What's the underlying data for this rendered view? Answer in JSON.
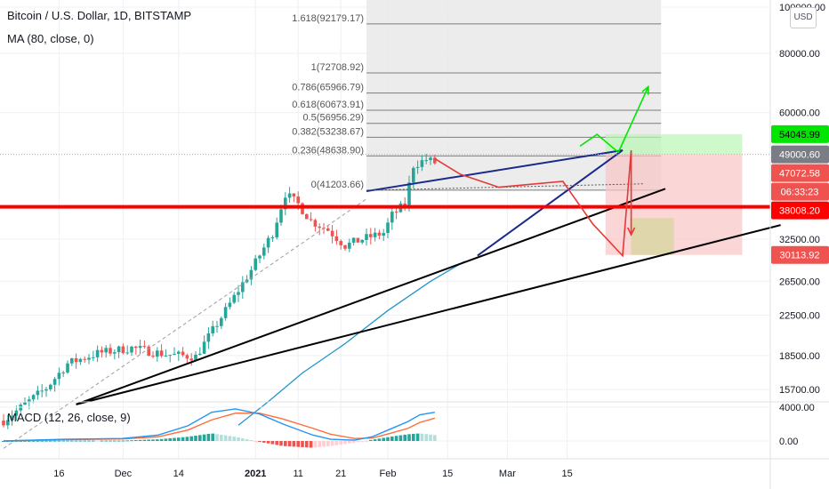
{
  "header": {
    "title": "Bitcoin / U.S. Dollar, 1D, BITSTAMP",
    "ma_label": "MA (80, close, 0)",
    "macd_label": "MACD (12, 26, close, 9)"
  },
  "currency_button": "USD",
  "colors": {
    "up": "#26a69a",
    "down": "#ef5350",
    "ma": "#2196c9",
    "macd": "#2196f3",
    "signal": "#ff6d3a",
    "support": "#ff0000",
    "trend_blue": "#1a2a8a",
    "long_green": "#00e600",
    "short_red": "#e53935"
  },
  "chart_data": {
    "type": "candlestick",
    "symbol": "Bitcoin / U.S. Dollar",
    "interval": "1D",
    "exchange": "BITSTAMP",
    "y_scale": "log",
    "y_ticks": [
      "100000.00",
      "80000.00",
      "60000.00",
      "32500.00",
      "26500.00",
      "22500.00",
      "18500.00",
      "15700.00"
    ],
    "x_ticks": [
      "16",
      "Dec",
      "14",
      "2021",
      "11",
      "21",
      "Feb",
      "15",
      "Mar",
      "15"
    ],
    "price_badges": [
      {
        "label": "54045.99",
        "bg": "#00e600",
        "fg": "#000000"
      },
      {
        "label": "49000.60",
        "bg": "#7a7d86",
        "fg": "#ffffff"
      },
      {
        "label": "47072.58",
        "bg": "#ef5350",
        "fg": "#ffffff"
      },
      {
        "label": "06:33:23",
        "bg": "#ef5350",
        "fg": "#ffffff"
      },
      {
        "label": "38008.20",
        "bg": "#ff0000",
        "fg": "#ffffff"
      },
      {
        "label": "30113.92",
        "bg": "#ef5350",
        "fg": "#ffffff"
      }
    ],
    "fib_levels": [
      {
        "label": "1.618(92179.17)"
      },
      {
        "label": "1(72708.92)"
      },
      {
        "label": "0.786(65966.79)"
      },
      {
        "label": "0.618(60673.91)"
      },
      {
        "label": "0.5(56956.29)"
      },
      {
        "label": "0.382(53238.67)"
      },
      {
        "label": "0.236(48638.90)"
      },
      {
        "label": "0(41203.66)"
      }
    ],
    "macd": {
      "params": "12, 26, close, 9",
      "y_ticks": [
        "4000.00",
        "0.00"
      ]
    },
    "ma": {
      "period": 80,
      "source": "close"
    }
  }
}
